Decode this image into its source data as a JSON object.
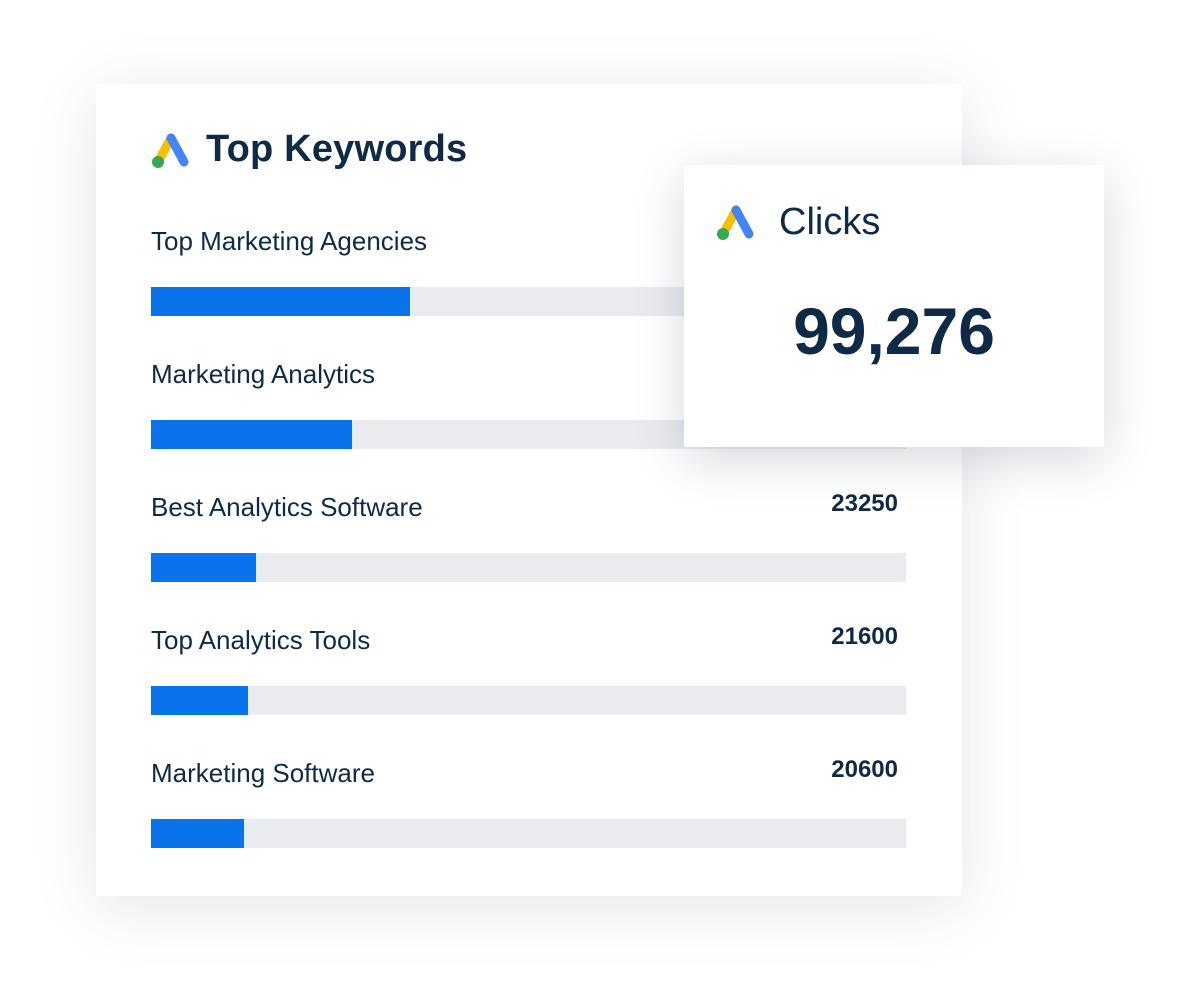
{
  "title": "Top Keywords",
  "keywords": [
    {
      "label": "Top Marketing Agencies",
      "value": 57400
    },
    {
      "label": "Marketing Analytics",
      "value": 44500
    },
    {
      "label": "Best Analytics Software",
      "value": 23250
    },
    {
      "label": "Top Analytics Tools",
      "value": 21600
    },
    {
      "label": "Marketing Software",
      "value": 20600
    }
  ],
  "clicks": {
    "label": "Clicks",
    "value": "99,276"
  }
}
